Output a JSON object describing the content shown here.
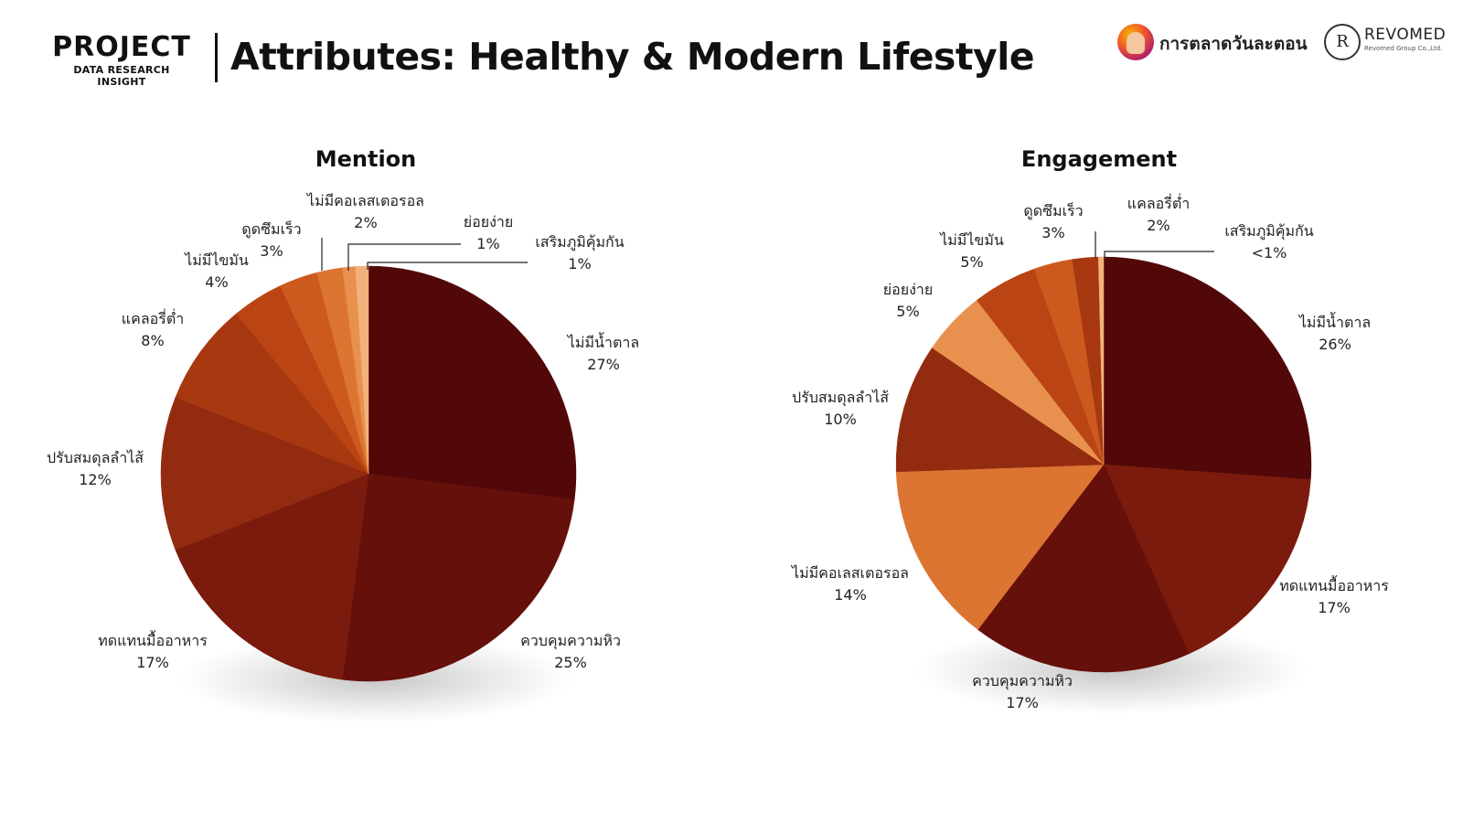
{
  "header": {
    "brand_title": "PROJECT",
    "brand_subtitle": "DATA RESEARCH INSIGHT",
    "page_title": "Attributes: Healthy & Modern  Lifestyle",
    "logo1_text": "การตลาดวันละตอน",
    "logo2_text": "REVOMED",
    "logo2_subtext": "Revomed Group Co.,Ltd.",
    "logo2_monogram": "R"
  },
  "colors": {
    "c1": "#520808",
    "c2": "#65100b",
    "c3": "#7b1b0d",
    "c4": "#932b10",
    "c5": "#a83810",
    "c6": "#bb4414",
    "c7": "#cc5a1f",
    "c8": "#dc7432",
    "c9": "#e8904d",
    "c10": "#f2b27c"
  },
  "chart_data": [
    {
      "type": "pie",
      "title": "Mention",
      "slices": [
        {
          "label": "ไม่มีน้ำตาล",
          "value": 27,
          "display": "27%",
          "color": "#520808"
        },
        {
          "label": "ควบคุมความหิว",
          "value": 25,
          "display": "25%",
          "color": "#65100b"
        },
        {
          "label": "ทดแทนมื้ออาหาร",
          "value": 17,
          "display": "17%",
          "color": "#7b1b0d"
        },
        {
          "label": "ปรับสมดุลลำไส้",
          "value": 12,
          "display": "12%",
          "color": "#932b10"
        },
        {
          "label": "แคลอรี่ต่ำ",
          "value": 8,
          "display": "8%",
          "color": "#a83810"
        },
        {
          "label": "ไม่มีไขมัน",
          "value": 4,
          "display": "4%",
          "color": "#bb4414"
        },
        {
          "label": "ดูดซึมเร็ว",
          "value": 3,
          "display": "3%",
          "color": "#cc5a1f"
        },
        {
          "label": "ไม่มีคอเลสเตอรอล",
          "value": 2,
          "display": "2%",
          "color": "#dc7432"
        },
        {
          "label": "ย่อยง่าย",
          "value": 1,
          "display": "1%",
          "color": "#e8904d"
        },
        {
          "label": "เสริมภูมิคุ้มกัน",
          "value": 1,
          "display": "1%",
          "color": "#f2b27c"
        }
      ]
    },
    {
      "type": "pie",
      "title": "Engagement",
      "slices": [
        {
          "label": "ไม่มีน้ำตาล",
          "value": 26,
          "display": "26%",
          "color": "#520808"
        },
        {
          "label": "ทดแทนมื้ออาหาร",
          "value": 17,
          "display": "17%",
          "color": "#7b1b0d"
        },
        {
          "label": "ควบคุมความหิว",
          "value": 17,
          "display": "17%",
          "color": "#65100b"
        },
        {
          "label": "ไม่มีคอเลสเตอรอล",
          "value": 14,
          "display": "14%",
          "color": "#dc7432"
        },
        {
          "label": "ปรับสมดุลลำไส้",
          "value": 10,
          "display": "10%",
          "color": "#932b10"
        },
        {
          "label": "ย่อยง่าย",
          "value": 5,
          "display": "5%",
          "color": "#e8904d"
        },
        {
          "label": "ไม่มีไขมัน",
          "value": 5,
          "display": "5%",
          "color": "#bb4414"
        },
        {
          "label": "ดูดซึมเร็ว",
          "value": 3,
          "display": "3%",
          "color": "#cc5a1f"
        },
        {
          "label": "แคลอรี่ต่ำ",
          "value": 2,
          "display": "2%",
          "color": "#a83810"
        },
        {
          "label": "เสริมภูมิคุ้มกัน",
          "value": 0.4,
          "display": "<1%",
          "color": "#f2b27c"
        }
      ]
    }
  ]
}
